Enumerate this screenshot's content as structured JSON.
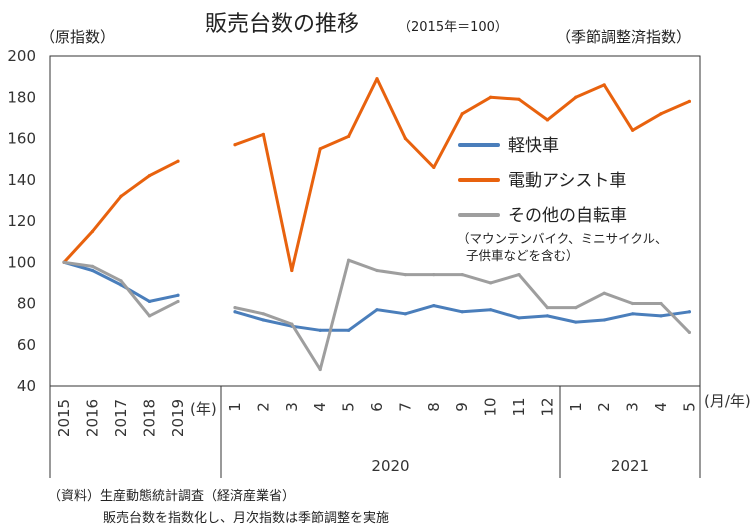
{
  "chart_data": {
    "type": "line",
    "title": "販売台数の推移",
    "subtitle": "（2015年＝100）",
    "ylabel_left": "（原指数）",
    "ylabel_right": "（季節調整済指数）",
    "ylim": [
      40,
      200
    ],
    "yticks": [
      40,
      60,
      80,
      100,
      120,
      140,
      160,
      180,
      200
    ],
    "annual": {
      "categories": [
        "2015",
        "2016",
        "2017",
        "2018",
        "2019"
      ],
      "unit_label": "(年)",
      "series": [
        {
          "name": "軽快車",
          "color": "#4a7ebb",
          "values": [
            100,
            96,
            89,
            81,
            84
          ]
        },
        {
          "name": "電動アシスト車",
          "color": "#e8620e",
          "values": [
            100,
            115,
            132,
            142,
            149
          ]
        },
        {
          "name": "その他の自転車",
          "color": "#9e9e9e",
          "values": [
            100,
            98,
            91,
            74,
            81
          ]
        }
      ]
    },
    "monthly": {
      "categories": [
        "1",
        "2",
        "3",
        "4",
        "5",
        "6",
        "7",
        "8",
        "9",
        "10",
        "11",
        "12",
        "1",
        "2",
        "3",
        "4",
        "5"
      ],
      "unit_label": "(月/年)",
      "year_labels": [
        {
          "label": "2020",
          "span": [
            0,
            11
          ]
        },
        {
          "label": "2021",
          "span": [
            12,
            16
          ]
        }
      ],
      "series": [
        {
          "name": "軽快車",
          "color": "#4a7ebb",
          "values": [
            76,
            72,
            69,
            67,
            67,
            77,
            75,
            79,
            76,
            77,
            73,
            74,
            71,
            72,
            75,
            74,
            76
          ]
        },
        {
          "name": "電動アシスト車",
          "color": "#e8620e",
          "values": [
            157,
            162,
            96,
            155,
            161,
            189,
            160,
            146,
            172,
            180,
            179,
            169,
            180,
            186,
            164,
            172,
            178
          ]
        },
        {
          "name": "その他の自転車",
          "color": "#9e9e9e",
          "values": [
            78,
            75,
            70,
            48,
            101,
            96,
            94,
            94,
            94,
            90,
            94,
            78,
            78,
            85,
            80,
            80,
            66
          ]
        }
      ]
    },
    "legend": [
      {
        "name": "軽快車",
        "color": "#4a7ebb"
      },
      {
        "name": "電動アシスト車",
        "color": "#e8620e"
      },
      {
        "name": "その他の自転車",
        "color": "#9e9e9e"
      }
    ],
    "legend_note": [
      "（マウンテンバイク、ミニサイクル、",
      "子供車などを含む）"
    ],
    "source": [
      "（資料）生産動態統計調査（経済産業省）",
      "販売台数を指数化し、月次指数は季節調整を実施"
    ]
  }
}
